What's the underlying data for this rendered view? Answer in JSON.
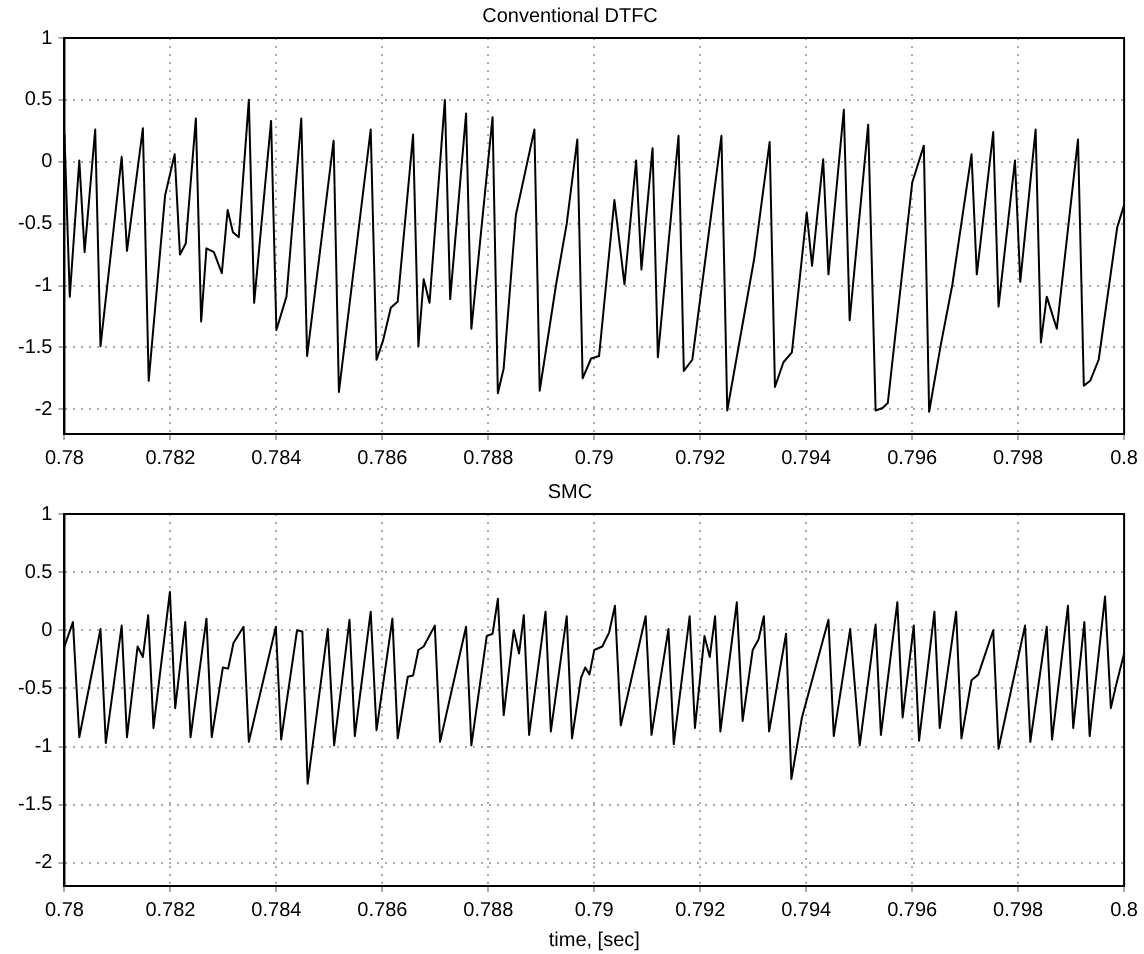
{
  "chart_data": [
    {
      "type": "line",
      "title": "Conventional DTFC",
      "color": "#000000",
      "xlim": [
        0.78,
        0.8
      ],
      "xticks": [
        0.78,
        0.782,
        0.784,
        0.786,
        0.788,
        0.79,
        0.792,
        0.794,
        0.796,
        0.798,
        0.8
      ],
      "ylim": [
        -2.2,
        1
      ],
      "yticks": [
        -2,
        -1.5,
        -1,
        -0.5,
        0,
        0.5,
        1
      ],
      "grid": true,
      "x": [
        0.78,
        0.7801,
        0.78028,
        0.78038,
        0.78058,
        0.78068,
        0.78108,
        0.78118,
        0.78148,
        0.78159,
        0.7819,
        0.78208,
        0.78218,
        0.78229,
        0.78248,
        0.78258,
        0.78268,
        0.78282,
        0.78297,
        0.78308,
        0.78318,
        0.78329,
        0.78348,
        0.78358,
        0.7839,
        0.784,
        0.78419,
        0.78447,
        0.78458,
        0.78508,
        0.78518,
        0.78578,
        0.78589,
        0.78601,
        0.78616,
        0.78629,
        0.78658,
        0.78668,
        0.78678,
        0.78689,
        0.78718,
        0.78728,
        0.78758,
        0.78768,
        0.78808,
        0.78818,
        0.78829,
        0.78852,
        0.78887,
        0.78897,
        0.78928,
        0.78948,
        0.78968,
        0.78978,
        0.78994,
        0.79009,
        0.79038,
        0.79057,
        0.79079,
        0.79089,
        0.7911,
        0.7912,
        0.79159,
        0.79169,
        0.79185,
        0.7924,
        0.79251,
        0.79302,
        0.79331,
        0.79341,
        0.79357,
        0.79373,
        0.79401,
        0.79411,
        0.79432,
        0.79442,
        0.79471,
        0.79482,
        0.79517,
        0.79531,
        0.79544,
        0.79554,
        0.796,
        0.79622,
        0.79632,
        0.79654,
        0.79676,
        0.79712,
        0.79722,
        0.79753,
        0.79763,
        0.79794,
        0.79804,
        0.79833,
        0.79843,
        0.79854,
        0.79873,
        0.79913,
        0.79924,
        0.79936,
        0.79952,
        0.79987,
        0.8
      ],
      "values": [
        0.22,
        -1.09,
        0.01,
        -0.73,
        0.26,
        -1.49,
        0.04,
        -0.72,
        0.27,
        -1.77,
        -0.27,
        0.06,
        -0.75,
        -0.66,
        0.35,
        -1.29,
        -0.7,
        -0.73,
        -0.9,
        -0.39,
        -0.57,
        -0.61,
        0.5,
        -1.14,
        0.33,
        -1.36,
        -1.09,
        0.35,
        -1.57,
        0.17,
        -1.86,
        0.26,
        -1.6,
        -1.45,
        -1.18,
        -1.13,
        0.22,
        -1.49,
        -0.95,
        -1.14,
        0.5,
        -1.11,
        0.39,
        -1.35,
        0.36,
        -1.87,
        -1.67,
        -0.43,
        0.26,
        -1.85,
        -0.99,
        -0.5,
        0.18,
        -1.75,
        -1.59,
        -1.57,
        -0.31,
        -0.99,
        0.01,
        -0.87,
        0.11,
        -1.58,
        0.21,
        -1.69,
        -1.6,
        0.21,
        -2.01,
        -0.78,
        0.16,
        -1.82,
        -1.62,
        -1.54,
        -0.41,
        -0.84,
        0.02,
        -0.91,
        0.42,
        -1.28,
        0.3,
        -2.01,
        -1.99,
        -1.95,
        -0.17,
        0.13,
        -2.02,
        -1.48,
        -0.99,
        0.06,
        -0.91,
        0.24,
        -1.17,
        0.01,
        -0.97,
        0.26,
        -1.46,
        -1.09,
        -1.35,
        0.18,
        -1.81,
        -1.77,
        -1.6,
        -0.53,
        -0.35
      ]
    },
    {
      "type": "line",
      "title": "SMC",
      "xlabel": "time, [sec]",
      "color": "#000000",
      "xlim": [
        0.78,
        0.8
      ],
      "xticks": [
        0.78,
        0.782,
        0.784,
        0.786,
        0.788,
        0.79,
        0.792,
        0.794,
        0.796,
        0.798,
        0.8
      ],
      "ylim": [
        -2.2,
        1
      ],
      "yticks": [
        -2,
        -1.5,
        -1,
        -0.5,
        0,
        0.5,
        1
      ],
      "grid": true,
      "x": [
        0.78,
        0.78016,
        0.78028,
        0.78068,
        0.78078,
        0.78108,
        0.78118,
        0.78138,
        0.78148,
        0.78158,
        0.78168,
        0.78199,
        0.78209,
        0.78228,
        0.78238,
        0.78268,
        0.78278,
        0.78299,
        0.78309,
        0.78319,
        0.78338,
        0.78348,
        0.78399,
        0.78409,
        0.78439,
        0.78449,
        0.78459,
        0.78497,
        0.78509,
        0.78538,
        0.78548,
        0.78578,
        0.78589,
        0.78619,
        0.78629,
        0.78648,
        0.78658,
        0.78668,
        0.78678,
        0.78699,
        0.78709,
        0.78758,
        0.78768,
        0.78797,
        0.78808,
        0.78818,
        0.78829,
        0.78848,
        0.78858,
        0.78867,
        0.78877,
        0.78908,
        0.78918,
        0.78948,
        0.78958,
        0.78975,
        0.78983,
        0.78991,
        0.79,
        0.79015,
        0.79028,
        0.79039,
        0.7905,
        0.79097,
        0.79108,
        0.7914,
        0.7915,
        0.7918,
        0.7919,
        0.79208,
        0.79218,
        0.79228,
        0.79238,
        0.79269,
        0.7928,
        0.79299,
        0.7931,
        0.7932,
        0.7933,
        0.79362,
        0.79372,
        0.79392,
        0.79442,
        0.79452,
        0.79483,
        0.79501,
        0.79531,
        0.79541,
        0.79572,
        0.79582,
        0.79603,
        0.79613,
        0.79642,
        0.79652,
        0.79683,
        0.79693,
        0.79712,
        0.79725,
        0.79753,
        0.79763,
        0.79813,
        0.79823,
        0.79854,
        0.79864,
        0.79894,
        0.79904,
        0.79925,
        0.79935,
        0.79964,
        0.79975,
        0.79985,
        0.8
      ],
      "values": [
        -0.14,
        0.07,
        -0.92,
        0.01,
        -0.97,
        0.04,
        -0.92,
        -0.14,
        -0.23,
        0.13,
        -0.84,
        0.33,
        -0.67,
        0.07,
        -0.92,
        0.1,
        -0.92,
        -0.32,
        -0.33,
        -0.11,
        0.03,
        -0.96,
        0.03,
        -0.94,
        0.0,
        -0.01,
        -1.32,
        0.01,
        -0.99,
        0.09,
        -0.91,
        0.16,
        -0.86,
        0.1,
        -0.93,
        -0.4,
        -0.39,
        -0.17,
        -0.14,
        0.04,
        -0.96,
        0.03,
        -0.99,
        -0.05,
        -0.03,
        0.27,
        -0.73,
        0.0,
        -0.2,
        0.13,
        -0.9,
        0.16,
        -0.87,
        0.12,
        -0.93,
        -0.41,
        -0.32,
        -0.38,
        -0.17,
        -0.14,
        -0.02,
        0.21,
        -0.82,
        0.12,
        -0.9,
        0.01,
        -0.98,
        0.12,
        -0.84,
        -0.05,
        -0.23,
        0.12,
        -0.87,
        0.24,
        -0.78,
        -0.17,
        -0.08,
        0.12,
        -0.87,
        -0.03,
        -1.28,
        -0.75,
        0.09,
        -0.91,
        0.01,
        -0.99,
        0.05,
        -0.9,
        0.24,
        -0.75,
        0.04,
        -0.95,
        0.16,
        -0.84,
        0.16,
        -0.93,
        -0.43,
        -0.38,
        0.0,
        -1.02,
        0.04,
        -0.96,
        0.03,
        -0.94,
        0.21,
        -0.84,
        0.07,
        -0.91,
        0.29,
        -0.67,
        -0.47,
        -0.2
      ]
    }
  ]
}
